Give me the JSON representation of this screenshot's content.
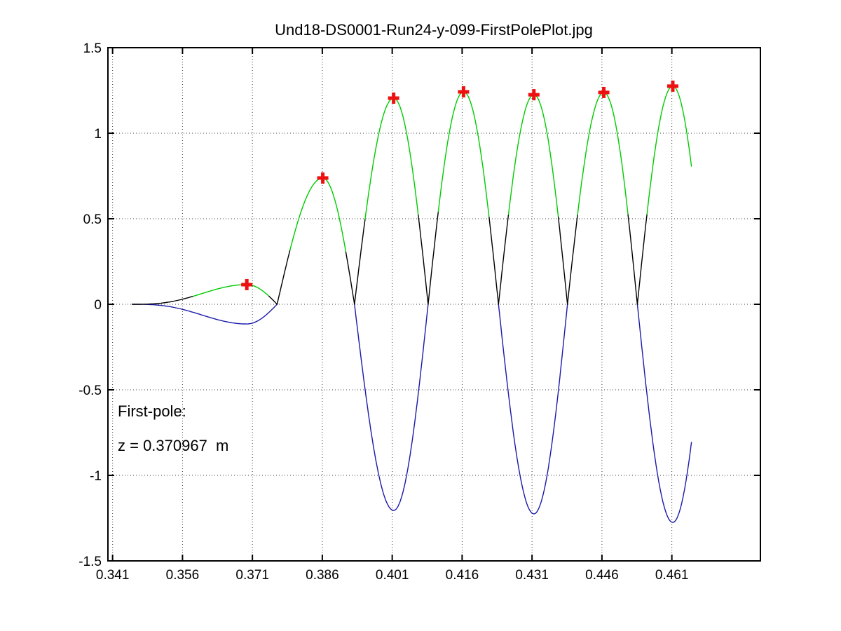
{
  "title": "Und18-DS0001-Run24-y-099-FirstPolePlot.jpg",
  "annotation": {
    "line1": "First-pole:",
    "line2": "z = 0.370967  m"
  },
  "chart_data": {
    "type": "line",
    "title": "Und18-DS0001-Run24-y-099-FirstPolePlot.jpg",
    "xlabel": "",
    "ylabel": "",
    "xlim": [
      0.34,
      0.48
    ],
    "ylim": [
      -1.5,
      1.5
    ],
    "xticks": [
      0.341,
      0.356,
      0.371,
      0.386,
      0.401,
      0.416,
      0.431,
      0.446,
      0.461
    ],
    "yticks": [
      -1.5,
      -1,
      -0.5,
      0,
      0.5,
      1,
      1.5
    ],
    "grid": "dotted",
    "legend": "none",
    "first_pole_z_m": 0.370967,
    "data_start": 0.3452,
    "data_end": 0.4652,
    "threshold_fraction": 0.42,
    "colors": {
      "baseline": "#000000",
      "positive_pole": "#00cc00",
      "negative_lobe": "#1a1aaa",
      "marker": "#ee1111"
    },
    "lobes": [
      {
        "z_left": 0.3452,
        "z_pole": 0.3698,
        "z_right": 0.3763,
        "amp": -0.115,
        "ease_in": 3
      },
      {
        "z_left": 0.3763,
        "z_pole": 0.3861,
        "z_right": 0.3929,
        "amp": 0.738
      },
      {
        "z_left": 0.3929,
        "z_pole": 0.4013,
        "z_right": 0.4087,
        "amp": -1.205
      },
      {
        "z_left": 0.4087,
        "z_pole": 0.4163,
        "z_right": 0.4238,
        "amp": 1.242
      },
      {
        "z_left": 0.4238,
        "z_pole": 0.4314,
        "z_right": 0.4386,
        "amp": -1.225
      },
      {
        "z_left": 0.4386,
        "z_pole": 0.4464,
        "z_right": 0.4536,
        "amp": 1.238
      },
      {
        "z_left": 0.4536,
        "z_pole": 0.4612,
        "z_right": 0.4683,
        "amp": -1.275
      }
    ],
    "poles": [
      {
        "z": 0.3698,
        "peak": 0.115
      },
      {
        "z": 0.3861,
        "peak": 0.738
      },
      {
        "z": 0.4013,
        "peak": 1.205
      },
      {
        "z": 0.4163,
        "peak": 1.242
      },
      {
        "z": 0.4314,
        "peak": 1.225
      },
      {
        "z": 0.4464,
        "peak": 1.238
      },
      {
        "z": 0.4612,
        "peak": 1.275
      }
    ]
  }
}
